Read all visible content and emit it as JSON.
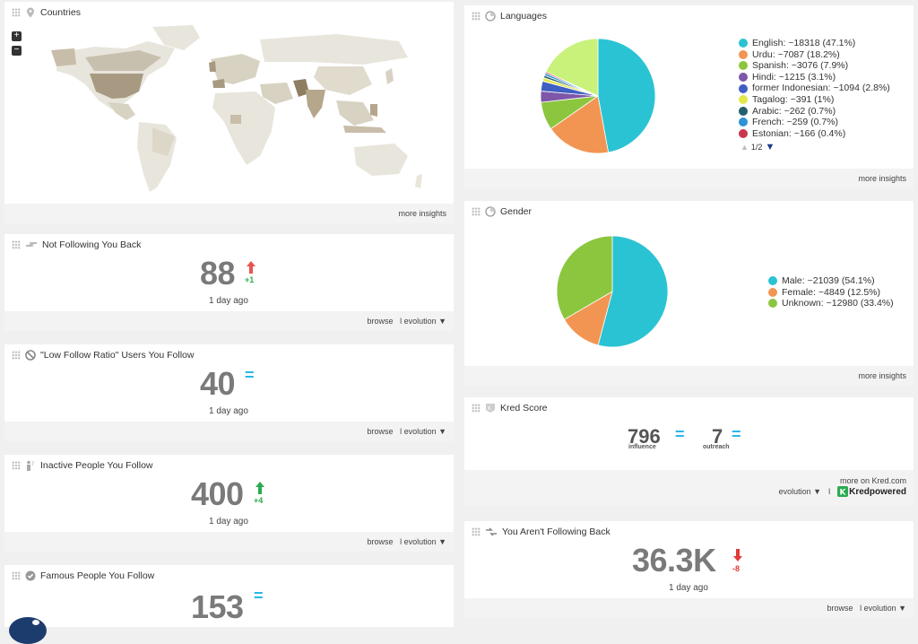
{
  "countries": {
    "title": "Countries",
    "zoom_in": "+",
    "zoom_out": "−",
    "more": "more insights"
  },
  "not_following": {
    "title": "Not Following You Back",
    "value": "88",
    "delta": "+1",
    "ago": "1 day ago",
    "browse": "browse",
    "evolution": "l evolution ▼"
  },
  "low_ratio": {
    "title": "\"Low Follow Ratio\" Users You Follow",
    "value": "40",
    "eq": "=",
    "ago": "1 day ago",
    "browse": "browse",
    "evolution": "l evolution ▼"
  },
  "inactive": {
    "title": "Inactive People You Follow",
    "value": "400",
    "delta": "+4",
    "ago": "1 day ago",
    "browse": "browse",
    "evolution": "l evolution ▼"
  },
  "famous": {
    "title": "Famous People You Follow",
    "value": "153",
    "eq": "="
  },
  "languages": {
    "title": "Languages",
    "legend": [
      {
        "label": "English: ~18318 (47.1%)",
        "color": "#2ac3d3"
      },
      {
        "label": "Urdu: ~7087 (18.2%)",
        "color": "#f29553"
      },
      {
        "label": "Spanish: ~3076 (7.9%)",
        "color": "#8cc63f"
      },
      {
        "label": "Hindi: ~1215 (3.1%)",
        "color": "#7e57a8"
      },
      {
        "label": "former Indonesian: ~1094 (2.8%)",
        "color": "#3f5fc3"
      },
      {
        "label": "Tagalog: ~391 (1%)",
        "color": "#e3e84a"
      },
      {
        "label": "Arabic: ~262 (0.7%)",
        "color": "#255e6b"
      },
      {
        "label": "French: ~259 (0.7%)",
        "color": "#2d93d6"
      },
      {
        "label": "Estonian: ~166 (0.4%)",
        "color": "#c9384a"
      }
    ],
    "pager": "1/2",
    "more": "more insights"
  },
  "gender": {
    "title": "Gender",
    "legend": [
      {
        "label": "Male: ~21039 (54.1%)",
        "color": "#2ac3d3"
      },
      {
        "label": "Female: ~4849 (12.5%)",
        "color": "#f29553"
      },
      {
        "label": "Unknown: ~12980 (33.4%)",
        "color": "#8cc63f"
      }
    ],
    "more": "more insights"
  },
  "kred": {
    "title": "Kred Score",
    "influence_value": "796",
    "influence_label": "influence",
    "outreach_value": "7",
    "outreach_label": "outreach",
    "eq": "=",
    "more_on": "more on Kred.com",
    "evolution": "evolution ▼",
    "sep": "l",
    "brand": "Kredpowered"
  },
  "not_following_back": {
    "title": "You Aren't Following Back",
    "value": "36.3K",
    "delta": "-8",
    "ago": "1 day ago",
    "browse": "browse",
    "evolution": "l evolution ▼"
  },
  "colors": {
    "up": "#2bab4f",
    "up_red": "#e8554f",
    "down": "#e23a3a",
    "eq": "#29b6e5"
  }
}
